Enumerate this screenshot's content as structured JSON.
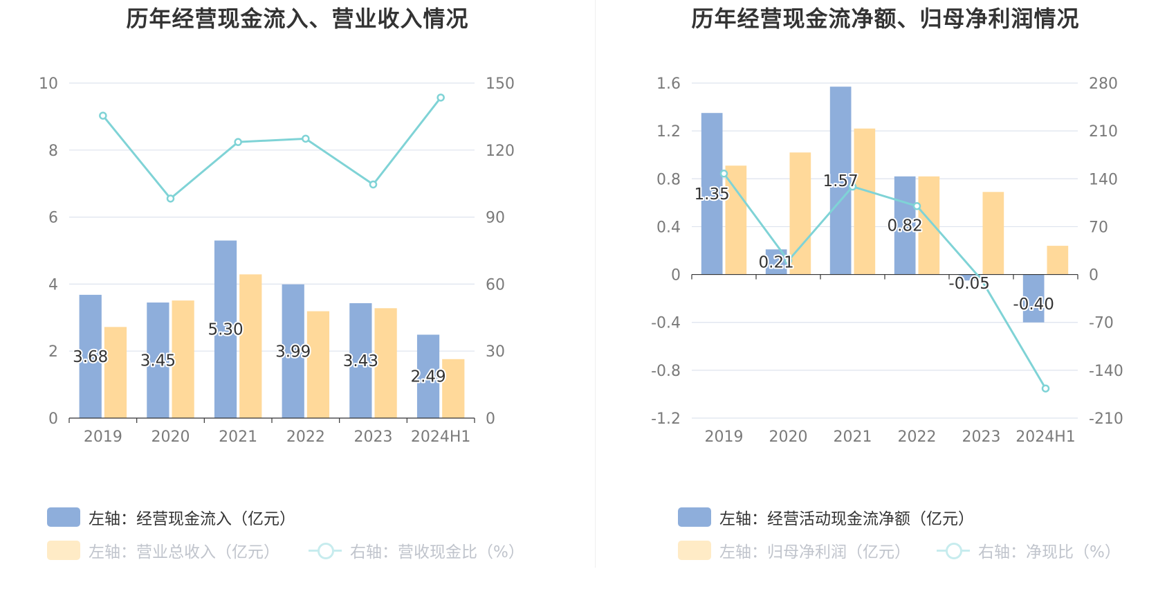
{
  "colors": {
    "bar_primary": "#8eaedb",
    "bar_secondary": "#ffd99a",
    "line": "#7fd3d6",
    "grid": "#dde3ee",
    "axis": "#333333"
  },
  "left": {
    "title": "历年经营现金流入、营业收入情况",
    "legend": [
      {
        "icon": "bar-swatch",
        "label": "左轴：经营现金流入（亿元）"
      },
      {
        "icon": "bar-swatch",
        "label": "左轴：营业总收入（亿元）"
      },
      {
        "icon": "line-swatch",
        "label": "右轴：营收现金比（%）"
      }
    ]
  },
  "right": {
    "title": "历年经营现金流净额、归母净利润情况",
    "legend": [
      {
        "icon": "bar-swatch",
        "label": "左轴：经营活动现金流净额（亿元）"
      },
      {
        "icon": "bar-swatch",
        "label": "左轴：归母净利润（亿元）"
      },
      {
        "icon": "line-swatch",
        "label": "右轴：净现比（%）"
      }
    ]
  },
  "chart_data": [
    {
      "type": "bar",
      "title": "历年经营现金流入、营业收入情况",
      "categories": [
        "2019",
        "2020",
        "2021",
        "2022",
        "2023",
        "2024H1"
      ],
      "left_axis": {
        "min": 0,
        "max": 10,
        "ticks": [
          "0",
          "2",
          "4",
          "6",
          "8",
          "10"
        ]
      },
      "right_axis": {
        "min": 0,
        "max": 150,
        "ticks": [
          "0",
          "30",
          "60",
          "90",
          "120",
          "150"
        ]
      },
      "series": [
        {
          "name": "左轴：经营现金流入（亿元）",
          "kind": "bar",
          "axis": "left",
          "values": [
            3.68,
            3.45,
            5.3,
            3.99,
            3.43,
            2.49
          ],
          "labels": [
            "3.68",
            "3.45",
            "5.30",
            "3.99",
            "3.43",
            "2.49"
          ]
        },
        {
          "name": "左轴：营业总收入（亿元）",
          "kind": "bar",
          "axis": "left",
          "values": [
            2.72,
            3.51,
            4.29,
            3.19,
            3.28,
            1.76
          ]
        },
        {
          "name": "右轴：营收现金比（%）",
          "kind": "line",
          "axis": "right",
          "values": [
            135.4,
            98.3,
            123.6,
            125.1,
            104.6,
            143.5
          ]
        }
      ],
      "grid": true,
      "legend_position": "bottom"
    },
    {
      "type": "bar",
      "title": "历年经营现金流净额、归母净利润情况",
      "categories": [
        "2019",
        "2020",
        "2021",
        "2022",
        "2023",
        "2024H1"
      ],
      "left_axis": {
        "min": -1.2,
        "max": 1.6,
        "ticks": [
          "-1.2",
          "-0.8",
          "-0.4",
          "0",
          "0.4",
          "0.8",
          "1.2",
          "1.6"
        ]
      },
      "right_axis": {
        "min": -210,
        "max": 280,
        "ticks": [
          "-210",
          "-140",
          "-70",
          "0",
          "70",
          "140",
          "210",
          "280"
        ]
      },
      "series": [
        {
          "name": "左轴：经营活动现金流净额（亿元）",
          "kind": "bar",
          "axis": "left",
          "values": [
            1.35,
            0.21,
            1.57,
            0.82,
            -0.05,
            -0.4
          ],
          "labels": [
            "1.35",
            "0.21",
            "1.57",
            "0.82",
            "-0.05",
            "-0.40"
          ]
        },
        {
          "name": "左轴：归母净利润（亿元）",
          "kind": "bar",
          "axis": "left",
          "values": [
            0.91,
            1.02,
            1.22,
            0.82,
            0.69,
            0.24
          ]
        },
        {
          "name": "右轴：净现比（%）",
          "kind": "line",
          "axis": "right",
          "values": [
            147.6,
            20.3,
            128.6,
            100.1,
            -7.2,
            -166.7
          ]
        }
      ],
      "grid": true,
      "legend_position": "bottom"
    }
  ]
}
